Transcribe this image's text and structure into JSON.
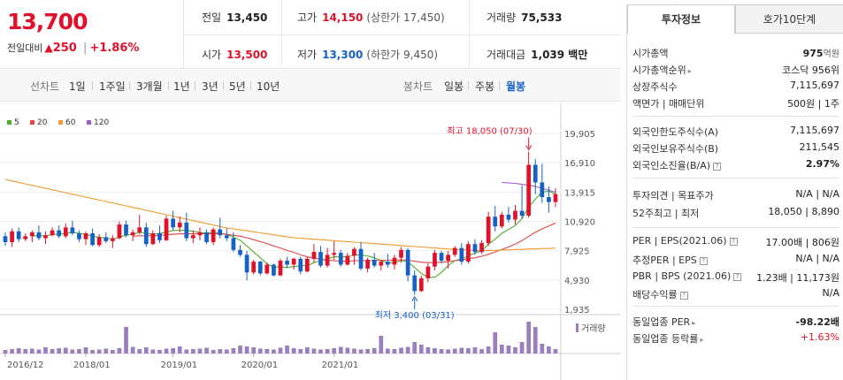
{
  "quote": {
    "price": "13,700",
    "change_label": "전일대비",
    "change_arrow": "▲",
    "change_value": "250",
    "change_rate": "+1.86%",
    "prev_close_label": "전일",
    "prev_close": "13,450",
    "high_label": "고가",
    "high": "14,150",
    "upper_limit": "(상한가 17,450)",
    "volume_label": "거래량",
    "volume": "75,533",
    "open_label": "시가",
    "open": "13,500",
    "low_label": "저가",
    "low": "13,300",
    "lower_limit": "(하한가 9,450)",
    "amount_label": "거래대금",
    "amount": "1,039 백만"
  },
  "toolbar": {
    "line_title": "선차트",
    "periods": [
      "1일",
      "1주일",
      "3개월",
      "1년",
      "3년",
      "5년",
      "10년"
    ],
    "candle_title": "봉차트",
    "candle_options": [
      "일봉",
      "주봉",
      "월봉"
    ],
    "active_candle": "월봉"
  },
  "chart_data": {
    "type": "candlestick",
    "legend": [
      {
        "name": "5",
        "color": "#4caf2a"
      },
      {
        "name": "20",
        "color": "#e34545"
      },
      {
        "name": "60",
        "color": "#f29a2e"
      },
      {
        "name": "120",
        "color": "#9b5fc0"
      }
    ],
    "yticks": [
      "19,905",
      "16,910",
      "13,915",
      "10,920",
      "7,925",
      "4,930",
      "1,935"
    ],
    "ylim": [
      1935,
      19905
    ],
    "xticks": [
      "2016/12",
      "2018/01",
      "2019/01",
      "2020/01",
      "2021/01"
    ],
    "max_annotation": "최고 18,050 (07/30)",
    "min_annotation": "최저 3,400 (03/31)",
    "volume_label": "거래량",
    "candles": [
      [
        9400,
        9800,
        8400,
        8800
      ],
      [
        8800,
        10200,
        8300,
        9900
      ],
      [
        9900,
        10300,
        8800,
        9100
      ],
      [
        9100,
        9700,
        8900,
        9400
      ],
      [
        9400,
        10000,
        8800,
        9800
      ],
      [
        9800,
        10500,
        9000,
        9200
      ],
      [
        9200,
        9900,
        8600,
        9500
      ],
      [
        9500,
        10300,
        9400,
        10000
      ],
      [
        10000,
        10500,
        9200,
        9400
      ],
      [
        9400,
        10700,
        9200,
        10300
      ],
      [
        10300,
        11000,
        9500,
        9700
      ],
      [
        9700,
        10000,
        8800,
        9100
      ],
      [
        9100,
        9900,
        8500,
        9700
      ],
      [
        9700,
        10200,
        8400,
        8500
      ],
      [
        8500,
        9600,
        8300,
        9300
      ],
      [
        9300,
        9800,
        8700,
        8900
      ],
      [
        8900,
        9500,
        8200,
        9200
      ],
      [
        9200,
        10900,
        9100,
        10600
      ],
      [
        10600,
        11000,
        9300,
        9500
      ],
      [
        9500,
        10100,
        8900,
        9800
      ],
      [
        9800,
        11600,
        9600,
        10300
      ],
      [
        10300,
        10800,
        8300,
        8600
      ],
      [
        8600,
        10000,
        8500,
        9700
      ],
      [
        9700,
        10500,
        8700,
        9000
      ],
      [
        9000,
        11500,
        8900,
        11200
      ],
      [
        11200,
        12000,
        10000,
        10300
      ],
      [
        10300,
        11400,
        9800,
        10800
      ],
      [
        10800,
        11800,
        8900,
        9200
      ],
      [
        9200,
        10000,
        8700,
        9500
      ],
      [
        9500,
        10300,
        9000,
        9800
      ],
      [
        9800,
        10100,
        8600,
        8800
      ],
      [
        8800,
        10300,
        8500,
        10100
      ],
      [
        10100,
        11300,
        9200,
        9500
      ],
      [
        9500,
        10200,
        8900,
        9200
      ],
      [
        9200,
        9800,
        7800,
        8000
      ],
      [
        8000,
        8500,
        7300,
        7500
      ],
      [
        7500,
        7900,
        4900,
        5700
      ],
      [
        5700,
        7000,
        5500,
        6800
      ],
      [
        6800,
        6900,
        5400,
        5600
      ],
      [
        5600,
        6700,
        5500,
        6500
      ],
      [
        6500,
        6600,
        5300,
        5400
      ],
      [
        5400,
        7100,
        5300,
        6900
      ],
      [
        6900,
        7300,
        6200,
        6500
      ],
      [
        6500,
        7200,
        6000,
        7100
      ],
      [
        7100,
        7300,
        5500,
        5800
      ],
      [
        5800,
        7300,
        5700,
        7100
      ],
      [
        7100,
        8600,
        6700,
        7800
      ],
      [
        7800,
        8400,
        6200,
        6400
      ],
      [
        6400,
        8200,
        6200,
        7500
      ],
      [
        7500,
        8900,
        7000,
        7700
      ],
      [
        7700,
        8000,
        6300,
        6500
      ],
      [
        6500,
        7700,
        6400,
        7400
      ],
      [
        7400,
        8300,
        6500,
        8100
      ],
      [
        8100,
        8800,
        5900,
        6100
      ],
      [
        6100,
        7200,
        5700,
        7000
      ],
      [
        7000,
        7700,
        6200,
        6400
      ],
      [
        6400,
        7000,
        5900,
        6800
      ],
      [
        6800,
        7600,
        6200,
        6500
      ],
      [
        6500,
        7500,
        6000,
        7200
      ],
      [
        7200,
        8300,
        6700,
        8000
      ],
      [
        8000,
        8200,
        4800,
        5400
      ],
      [
        5400,
        5900,
        3400,
        3800
      ],
      [
        3800,
        5400,
        3700,
        5100
      ],
      [
        5100,
        6600,
        4700,
        6300
      ],
      [
        6300,
        8000,
        5900,
        7700
      ],
      [
        7700,
        7900,
        6600,
        6900
      ],
      [
        6900,
        7900,
        6100,
        7500
      ],
      [
        7500,
        8400,
        7300,
        8200
      ],
      [
        8200,
        8700,
        6500,
        6800
      ],
      [
        6800,
        8900,
        6600,
        8600
      ],
      [
        8600,
        9100,
        7500,
        7800
      ],
      [
        7800,
        9000,
        7600,
        8700
      ],
      [
        8700,
        11900,
        8400,
        11400
      ],
      [
        11400,
        12500,
        9900,
        10400
      ],
      [
        10400,
        11900,
        10200,
        11600
      ],
      [
        11600,
        12400,
        10800,
        11100
      ],
      [
        11100,
        12600,
        10600,
        12000
      ],
      [
        12000,
        14600,
        11200,
        11500
      ],
      [
        11500,
        18050,
        11300,
        16700
      ],
      [
        16700,
        17300,
        13700,
        14900
      ],
      [
        14900,
        16800,
        12800,
        13400
      ],
      [
        13400,
        14500,
        11800,
        12900
      ],
      [
        12900,
        14300,
        12400,
        13700
      ]
    ],
    "ma_lines": [
      {
        "name": "5",
        "color": "#4caf2a",
        "values": [
          null,
          null,
          null,
          null,
          9400,
          9500,
          9400,
          9600,
          9600,
          9700,
          9800,
          9700,
          9600,
          9400,
          9300,
          9200,
          9100,
          9300,
          9500,
          9600,
          9800,
          9700,
          9600,
          9700,
          9800,
          10000,
          10000,
          10000,
          9900,
          9800,
          9700,
          9800,
          9700,
          9600,
          9300,
          9000,
          8400,
          7800,
          7200,
          6600,
          6200,
          6300,
          6200,
          6300,
          6400,
          6400,
          6700,
          6900,
          7100,
          7300,
          7300,
          7300,
          7500,
          7500,
          7400,
          7200,
          6900,
          6700,
          6700,
          6900,
          6800,
          6200,
          5600,
          5200,
          5200,
          5700,
          6400,
          6900,
          7100,
          7400,
          7700,
          7900,
          8600,
          9100,
          9700,
          10100,
          10500,
          11200,
          12400,
          13200,
          13900,
          14000,
          13700
        ]
      },
      {
        "name": "20",
        "color": "#e34545",
        "values": [
          null,
          null,
          null,
          null,
          null,
          null,
          null,
          null,
          null,
          null,
          null,
          null,
          null,
          null,
          null,
          null,
          null,
          null,
          null,
          9400,
          9450,
          9450,
          9450,
          9500,
          9550,
          9600,
          9650,
          9650,
          9650,
          9650,
          9650,
          9650,
          9650,
          9600,
          9500,
          9400,
          9250,
          9050,
          8850,
          8650,
          8400,
          8200,
          7950,
          7750,
          7500,
          7300,
          7150,
          7050,
          6950,
          6900,
          6850,
          6850,
          6900,
          6900,
          6900,
          6900,
          6950,
          6950,
          6950,
          7000,
          6950,
          6850,
          6750,
          6700,
          6700,
          6750,
          6800,
          6900,
          7000,
          7100,
          7200,
          7350,
          7550,
          7800,
          8050,
          8300,
          8600,
          8950,
          9400,
          9800,
          10150,
          10450,
          10750
        ]
      },
      {
        "name": "60",
        "color": "#f29a2e",
        "values": [
          15200,
          15050,
          14900,
          14750,
          14600,
          14450,
          14300,
          14150,
          14000,
          13850,
          13700,
          13550,
          13400,
          13250,
          13100,
          12950,
          12800,
          12650,
          12500,
          12350,
          12200,
          12050,
          11900,
          11750,
          11600,
          11450,
          11300,
          11150,
          11000,
          10850,
          10700,
          10550,
          10400,
          10250,
          10150,
          10050,
          9950,
          9850,
          9750,
          9650,
          9550,
          9450,
          9350,
          9250,
          9200,
          9150,
          9100,
          9050,
          9000,
          8950,
          8900,
          8850,
          8800,
          8750,
          8700,
          8650,
          8600,
          8550,
          8500,
          8450,
          8400,
          8350,
          8300,
          8250,
          8200,
          8150,
          8100,
          8050,
          8050,
          8000,
          7950,
          7950,
          7950,
          7950,
          8000,
          8000,
          8050,
          8050,
          8100,
          8100,
          8150,
          8150,
          8200
        ]
      },
      {
        "name": "120",
        "color": "#9b5fc0",
        "values": [
          null,
          null,
          null,
          null,
          null,
          null,
          null,
          null,
          null,
          null,
          null,
          null,
          null,
          null,
          null,
          null,
          null,
          null,
          null,
          null,
          null,
          null,
          null,
          null,
          null,
          null,
          null,
          null,
          null,
          null,
          null,
          null,
          null,
          null,
          null,
          null,
          null,
          null,
          null,
          null,
          null,
          null,
          null,
          null,
          null,
          null,
          null,
          null,
          null,
          null,
          null,
          null,
          null,
          null,
          null,
          null,
          null,
          null,
          null,
          null,
          null,
          null,
          null,
          null,
          null,
          null,
          null,
          null,
          null,
          null,
          null,
          null,
          null,
          null,
          14900,
          14850,
          14800,
          14700,
          14600,
          14500,
          14300,
          14100,
          13900
        ]
      }
    ],
    "volume": [
      8,
      10,
      12,
      10,
      11,
      9,
      14,
      10,
      12,
      13,
      9,
      10,
      14,
      8,
      9,
      11,
      8,
      12,
      60,
      15,
      10,
      14,
      9,
      8,
      11,
      12,
      16,
      9,
      10,
      11,
      13,
      8,
      10,
      9,
      12,
      18,
      16,
      14,
      11,
      10,
      9,
      13,
      18,
      12,
      10,
      14,
      11,
      9,
      10,
      12,
      15,
      13,
      11,
      9,
      10,
      12,
      40,
      11,
      10,
      13,
      15,
      26,
      20,
      14,
      12,
      10,
      9,
      11,
      13,
      12,
      14,
      10,
      16,
      48,
      20,
      18,
      14,
      26,
      72,
      60,
      22,
      16,
      10
    ]
  },
  "panel": {
    "tabs": [
      "투자정보",
      "호가10단계"
    ],
    "market_cap_label": "시가총액",
    "market_cap": "975",
    "market_cap_unit": "억원",
    "market_cap_rank_label": "시가총액순위",
    "market_cap_rank": "코스닥 956위",
    "shares_label": "상장주식수",
    "shares": "7,115,697",
    "par_label": "액면가 | 매매단위",
    "par": "500원 | 1주",
    "foreign_limit_label": "외국인한도주식수(A)",
    "foreign_limit": "7,115,697",
    "foreign_hold_label": "외국인보유주식수(B)",
    "foreign_hold": "211,545",
    "foreign_ratio_label": "외국인소진율(B/A)",
    "foreign_ratio": "2.97%",
    "opinion_label": "투자의견 | 목표주가",
    "opinion": "N/A | N/A",
    "w52_label": "52주최고 | 최저",
    "w52": "18,050 | 8,890",
    "per_label": "PER | EPS(2021.06)",
    "per": "17.00배 | 806원",
    "est_per_label": "추정PER | EPS",
    "est_per": "N/A | N/A",
    "pbr_label": "PBR | BPS (2021.06)",
    "pbr": "1.23배 | 11,173원",
    "div_label": "배당수익률",
    "div": "N/A",
    "sector_per_label": "동일업종 PER",
    "sector_per": "-98.22배",
    "sector_rate_label": "동일업종 등락률",
    "sector_rate": "+1.63%",
    "q_mark": "?"
  }
}
